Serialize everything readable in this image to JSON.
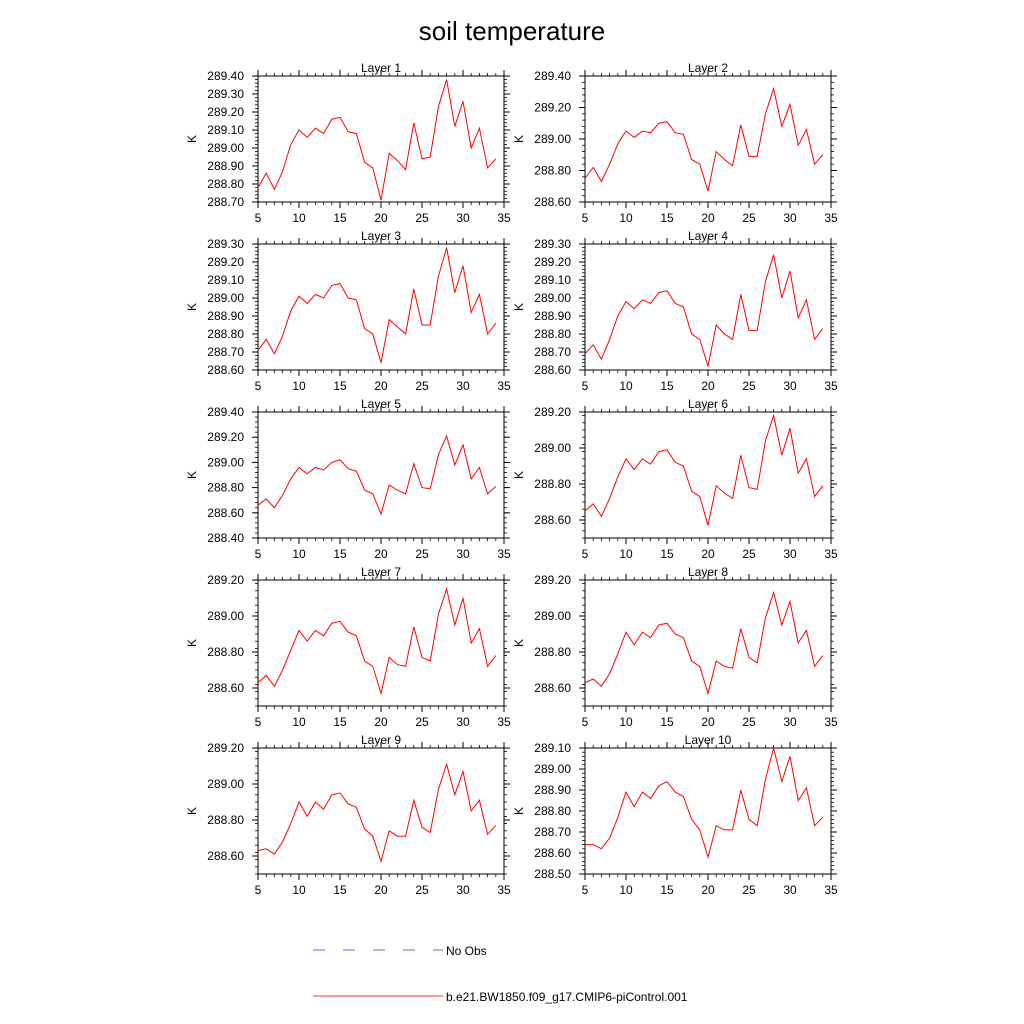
{
  "title": "soil temperature",
  "legend": {
    "placement": "bottom",
    "entries": [
      {
        "label": "No Obs",
        "color": "#6a6adf",
        "style": "dashed"
      },
      {
        "label": "b.e21.BW1850.f09_g17.CMIP6-piControl.001",
        "color": "#ff3030",
        "style": "solid"
      }
    ]
  },
  "chart_data": [
    {
      "type": "line",
      "title": "Layer 1",
      "ylabel": "K",
      "xlim": [
        5,
        35
      ],
      "ylim": [
        288.7,
        289.4
      ],
      "xticks": [
        5,
        10,
        15,
        20,
        25,
        30,
        35
      ],
      "yticks": [
        288.7,
        288.8,
        288.9,
        289.0,
        289.1,
        289.2,
        289.3,
        289.4
      ],
      "ytick_labels": [
        "288.70",
        "288.80",
        "288.90",
        "289.00",
        "289.10",
        "289.20",
        "289.30",
        "289.40"
      ],
      "x": [
        5,
        6,
        7,
        8,
        9,
        10,
        11,
        12,
        13,
        14,
        15,
        16,
        17,
        18,
        19,
        20,
        21,
        22,
        23,
        24,
        25,
        26,
        27,
        28,
        29,
        30,
        31,
        32,
        33,
        34
      ],
      "series": [
        {
          "color": "#ff0000",
          "values": [
            288.78,
            288.86,
            288.77,
            288.87,
            289.02,
            289.1,
            289.06,
            289.11,
            289.08,
            289.16,
            289.17,
            289.09,
            289.08,
            288.92,
            288.89,
            288.71,
            288.97,
            288.93,
            288.88,
            289.14,
            288.94,
            288.95,
            289.23,
            289.38,
            289.12,
            289.26,
            289.0,
            289.11,
            288.89,
            288.94
          ]
        }
      ]
    },
    {
      "type": "line",
      "title": "Layer 2",
      "ylabel": "K",
      "xlim": [
        5,
        35
      ],
      "ylim": [
        288.6,
        289.4
      ],
      "xticks": [
        5,
        10,
        15,
        20,
        25,
        30,
        35
      ],
      "yticks": [
        288.6,
        288.8,
        289.0,
        289.2,
        289.4
      ],
      "ytick_labels": [
        "288.60",
        "288.80",
        "289.00",
        "289.20",
        "289.40"
      ],
      "x": [
        5,
        6,
        7,
        8,
        9,
        10,
        11,
        12,
        13,
        14,
        15,
        16,
        17,
        18,
        19,
        20,
        21,
        22,
        23,
        24,
        25,
        26,
        27,
        28,
        29,
        30,
        31,
        32,
        33,
        34
      ],
      "series": [
        {
          "color": "#ff0000",
          "values": [
            288.75,
            288.82,
            288.73,
            288.84,
            288.97,
            289.05,
            289.01,
            289.05,
            289.04,
            289.1,
            289.11,
            289.04,
            289.03,
            288.87,
            288.84,
            288.67,
            288.92,
            288.87,
            288.83,
            289.09,
            288.89,
            288.89,
            289.16,
            289.32,
            289.08,
            289.22,
            288.96,
            289.06,
            288.84,
            288.9
          ]
        }
      ]
    },
    {
      "type": "line",
      "title": "Layer 3",
      "ylabel": "K",
      "xlim": [
        5,
        35
      ],
      "ylim": [
        288.6,
        289.3
      ],
      "xticks": [
        5,
        10,
        15,
        20,
        25,
        30,
        35
      ],
      "yticks": [
        288.6,
        288.7,
        288.8,
        288.9,
        289.0,
        289.1,
        289.2,
        289.3
      ],
      "ytick_labels": [
        "288.60",
        "288.70",
        "288.80",
        "288.90",
        "289.00",
        "289.10",
        "289.20",
        "289.30"
      ],
      "x": [
        5,
        6,
        7,
        8,
        9,
        10,
        11,
        12,
        13,
        14,
        15,
        16,
        17,
        18,
        19,
        20,
        21,
        22,
        23,
        24,
        25,
        26,
        27,
        28,
        29,
        30,
        31,
        32,
        33,
        34
      ],
      "series": [
        {
          "color": "#ff0000",
          "values": [
            288.71,
            288.77,
            288.69,
            288.79,
            288.93,
            289.01,
            288.97,
            289.02,
            289.0,
            289.07,
            289.08,
            289.0,
            288.99,
            288.83,
            288.8,
            288.64,
            288.88,
            288.84,
            288.8,
            289.05,
            288.85,
            288.85,
            289.12,
            289.28,
            289.03,
            289.18,
            288.92,
            289.02,
            288.8,
            288.86
          ]
        }
      ]
    },
    {
      "type": "line",
      "title": "Layer 4",
      "ylabel": "K",
      "xlim": [
        5,
        35
      ],
      "ylim": [
        288.6,
        289.3
      ],
      "xticks": [
        5,
        10,
        15,
        20,
        25,
        30,
        35
      ],
      "yticks": [
        288.6,
        288.7,
        288.8,
        288.9,
        289.0,
        289.1,
        289.2,
        289.3
      ],
      "ytick_labels": [
        "288.60",
        "288.70",
        "288.80",
        "288.90",
        "289.00",
        "289.10",
        "289.20",
        "289.30"
      ],
      "x": [
        5,
        6,
        7,
        8,
        9,
        10,
        11,
        12,
        13,
        14,
        15,
        16,
        17,
        18,
        19,
        20,
        21,
        22,
        23,
        24,
        25,
        26,
        27,
        28,
        29,
        30,
        31,
        32,
        33,
        34
      ],
      "series": [
        {
          "color": "#ff0000",
          "values": [
            288.69,
            288.74,
            288.66,
            288.77,
            288.9,
            288.98,
            288.94,
            288.99,
            288.97,
            289.03,
            289.04,
            288.97,
            288.95,
            288.8,
            288.77,
            288.62,
            288.85,
            288.8,
            288.77,
            289.02,
            288.82,
            288.82,
            289.09,
            289.24,
            289.0,
            289.15,
            288.89,
            288.99,
            288.77,
            288.83
          ]
        }
      ]
    },
    {
      "type": "line",
      "title": "Layer 5",
      "ylabel": "K",
      "xlim": [
        5,
        35
      ],
      "ylim": [
        288.4,
        289.4
      ],
      "xticks": [
        5,
        10,
        15,
        20,
        25,
        30,
        35
      ],
      "yticks": [
        288.4,
        288.6,
        288.8,
        289.0,
        289.2,
        289.4
      ],
      "ytick_labels": [
        "288.40",
        "288.60",
        "288.80",
        "289.00",
        "289.20",
        "289.40"
      ],
      "x": [
        5,
        6,
        7,
        8,
        9,
        10,
        11,
        12,
        13,
        14,
        15,
        16,
        17,
        18,
        19,
        20,
        21,
        22,
        23,
        24,
        25,
        26,
        27,
        28,
        29,
        30,
        31,
        32,
        33,
        34
      ],
      "series": [
        {
          "color": "#ff0000",
          "values": [
            288.66,
            288.71,
            288.64,
            288.74,
            288.87,
            288.96,
            288.91,
            288.96,
            288.94,
            289.0,
            289.02,
            288.95,
            288.93,
            288.78,
            288.75,
            288.59,
            288.82,
            288.78,
            288.75,
            288.99,
            288.8,
            288.79,
            289.06,
            289.21,
            288.98,
            289.14,
            288.87,
            288.96,
            288.75,
            288.81
          ]
        }
      ]
    },
    {
      "type": "line",
      "title": "Layer 6",
      "ylabel": "K",
      "xlim": [
        5,
        35
      ],
      "ylim": [
        288.5,
        289.2
      ],
      "xticks": [
        5,
        10,
        15,
        20,
        25,
        30,
        35
      ],
      "yticks": [
        288.6,
        288.8,
        289.0,
        289.2
      ],
      "ytick_labels": [
        "288.60",
        "288.80",
        "289.00",
        "289.20"
      ],
      "x": [
        5,
        6,
        7,
        8,
        9,
        10,
        11,
        12,
        13,
        14,
        15,
        16,
        17,
        18,
        19,
        20,
        21,
        22,
        23,
        24,
        25,
        26,
        27,
        28,
        29,
        30,
        31,
        32,
        33,
        34
      ],
      "series": [
        {
          "color": "#ff0000",
          "values": [
            288.65,
            288.69,
            288.62,
            288.72,
            288.84,
            288.94,
            288.88,
            288.94,
            288.91,
            288.98,
            288.99,
            288.92,
            288.9,
            288.76,
            288.73,
            288.57,
            288.79,
            288.75,
            288.72,
            288.96,
            288.78,
            288.77,
            289.04,
            289.18,
            288.96,
            289.11,
            288.86,
            288.94,
            288.73,
            288.79
          ]
        }
      ]
    },
    {
      "type": "line",
      "title": "Layer 7",
      "ylabel": "K",
      "xlim": [
        5,
        35
      ],
      "ylim": [
        288.5,
        289.2
      ],
      "xticks": [
        5,
        10,
        15,
        20,
        25,
        30,
        35
      ],
      "yticks": [
        288.6,
        288.8,
        289.0,
        289.2
      ],
      "ytick_labels": [
        "288.60",
        "288.80",
        "289.00",
        "289.20"
      ],
      "x": [
        5,
        6,
        7,
        8,
        9,
        10,
        11,
        12,
        13,
        14,
        15,
        16,
        17,
        18,
        19,
        20,
        21,
        22,
        23,
        24,
        25,
        26,
        27,
        28,
        29,
        30,
        31,
        32,
        33,
        34
      ],
      "series": [
        {
          "color": "#ff0000",
          "values": [
            288.63,
            288.67,
            288.61,
            288.7,
            288.81,
            288.92,
            288.86,
            288.92,
            288.89,
            288.96,
            288.97,
            288.91,
            288.89,
            288.75,
            288.72,
            288.57,
            288.77,
            288.73,
            288.72,
            288.94,
            288.77,
            288.75,
            289.01,
            289.15,
            288.95,
            289.1,
            288.85,
            288.93,
            288.72,
            288.78
          ]
        }
      ]
    },
    {
      "type": "line",
      "title": "Layer 8",
      "ylabel": "K",
      "xlim": [
        5,
        35
      ],
      "ylim": [
        288.5,
        289.2
      ],
      "xticks": [
        5,
        10,
        15,
        20,
        25,
        30,
        35
      ],
      "yticks": [
        288.6,
        288.8,
        289.0,
        289.2
      ],
      "ytick_labels": [
        "288.60",
        "288.80",
        "289.00",
        "289.20"
      ],
      "x": [
        5,
        6,
        7,
        8,
        9,
        10,
        11,
        12,
        13,
        14,
        15,
        16,
        17,
        18,
        19,
        20,
        21,
        22,
        23,
        24,
        25,
        26,
        27,
        28,
        29,
        30,
        31,
        32,
        33,
        34
      ],
      "series": [
        {
          "color": "#ff0000",
          "values": [
            288.63,
            288.65,
            288.61,
            288.68,
            288.79,
            288.91,
            288.84,
            288.91,
            288.88,
            288.95,
            288.96,
            288.9,
            288.88,
            288.75,
            288.72,
            288.57,
            288.75,
            288.72,
            288.71,
            288.93,
            288.77,
            288.74,
            288.99,
            289.13,
            288.95,
            289.08,
            288.85,
            288.92,
            288.72,
            288.78
          ]
        }
      ]
    },
    {
      "type": "line",
      "title": "Layer 9",
      "ylabel": "K",
      "xlim": [
        5,
        35
      ],
      "ylim": [
        288.5,
        289.2
      ],
      "xticks": [
        5,
        10,
        15,
        20,
        25,
        30,
        35
      ],
      "yticks": [
        288.6,
        288.8,
        289.0,
        289.2
      ],
      "ytick_labels": [
        "288.60",
        "288.80",
        "289.00",
        "289.20"
      ],
      "x": [
        5,
        6,
        7,
        8,
        9,
        10,
        11,
        12,
        13,
        14,
        15,
        16,
        17,
        18,
        19,
        20,
        21,
        22,
        23,
        24,
        25,
        26,
        27,
        28,
        29,
        30,
        31,
        32,
        33,
        34
      ],
      "series": [
        {
          "color": "#ff0000",
          "values": [
            288.63,
            288.64,
            288.61,
            288.68,
            288.78,
            288.9,
            288.82,
            288.9,
            288.86,
            288.94,
            288.95,
            288.89,
            288.87,
            288.75,
            288.71,
            288.57,
            288.74,
            288.71,
            288.71,
            288.91,
            288.76,
            288.73,
            288.97,
            289.11,
            288.94,
            289.07,
            288.85,
            288.91,
            288.72,
            288.77
          ]
        }
      ]
    },
    {
      "type": "line",
      "title": "Layer 10",
      "ylabel": "K",
      "xlim": [
        5,
        35
      ],
      "ylim": [
        288.5,
        289.1
      ],
      "xticks": [
        5,
        10,
        15,
        20,
        25,
        30,
        35
      ],
      "yticks": [
        288.5,
        288.6,
        288.7,
        288.8,
        288.9,
        289.0,
        289.1
      ],
      "ytick_labels": [
        "288.50",
        "288.60",
        "288.70",
        "288.80",
        "288.90",
        "289.00",
        "289.10"
      ],
      "x": [
        5,
        6,
        7,
        8,
        9,
        10,
        11,
        12,
        13,
        14,
        15,
        16,
        17,
        18,
        19,
        20,
        21,
        22,
        23,
        24,
        25,
        26,
        27,
        28,
        29,
        30,
        31,
        32,
        33,
        34
      ],
      "series": [
        {
          "color": "#ff0000",
          "values": [
            288.64,
            288.64,
            288.62,
            288.67,
            288.77,
            288.89,
            288.82,
            288.89,
            288.86,
            288.92,
            288.94,
            288.89,
            288.87,
            288.76,
            288.71,
            288.58,
            288.73,
            288.71,
            288.71,
            288.9,
            288.76,
            288.73,
            288.95,
            289.1,
            288.94,
            289.06,
            288.85,
            288.91,
            288.73,
            288.77
          ]
        }
      ]
    }
  ]
}
